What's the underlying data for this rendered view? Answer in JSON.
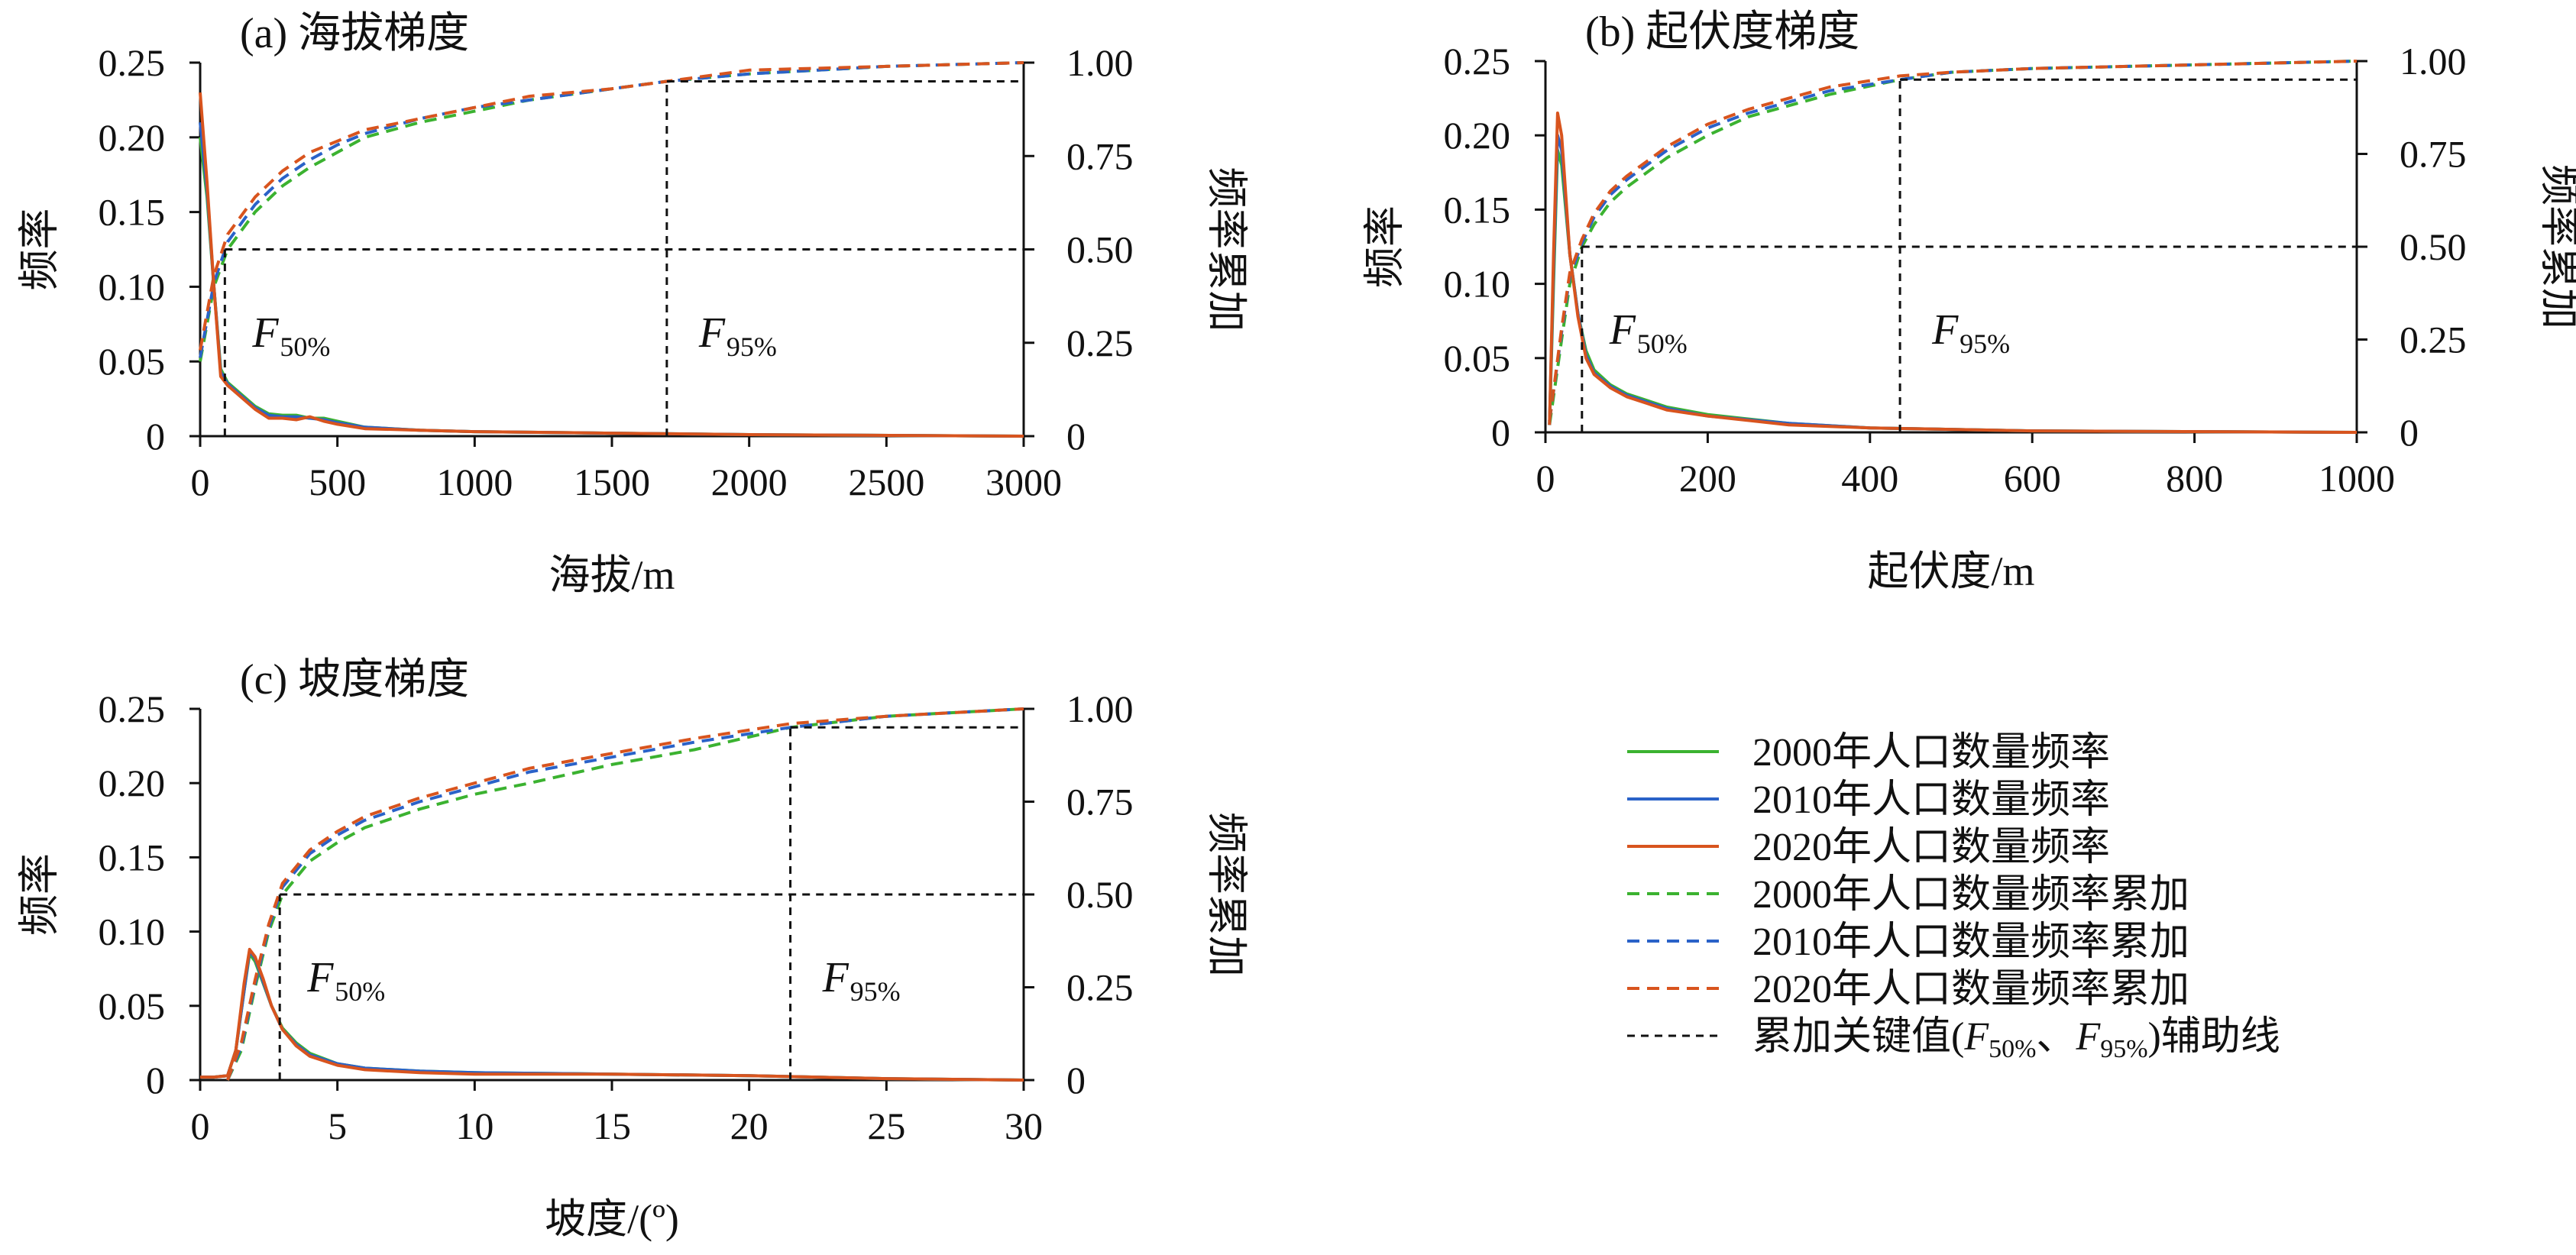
{
  "chart_data": [
    {
      "panel": "a",
      "type": "line",
      "title": "(a) 海拔梯度",
      "xlabel": "海拔/m",
      "ylabel_left": "频率",
      "ylabel_right": "频率累加",
      "xlim": [
        0,
        3000
      ],
      "ylim_left": [
        0,
        0.25
      ],
      "ylim_right": [
        0,
        1.0
      ],
      "x_ticks": [
        "0",
        "500",
        "1000",
        "1500",
        "2000",
        "2500",
        "3000"
      ],
      "y_ticks_left": [
        "0",
        "0.05",
        "0.10",
        "0.15",
        "0.20",
        "0.25"
      ],
      "y_ticks_right": [
        "0",
        "0.25",
        "0.50",
        "0.75",
        "1.00"
      ],
      "key_values": {
        "F50_x": 90,
        "F95_x": 1700
      },
      "key_labels": {
        "F50_main": "F",
        "F50_sub": "50%",
        "F95_main": "F",
        "F95_sub": "95%"
      },
      "series": [
        {
          "name": "2000年人口数量频率",
          "axis": "left",
          "style": "solid",
          "color": "#3bb230",
          "x": [
            0,
            25,
            50,
            75,
            100,
            150,
            200,
            250,
            300,
            350,
            400,
            450,
            500,
            600,
            800,
            1000,
            1500,
            2000,
            3000
          ],
          "y": [
            0.2,
            0.16,
            0.1,
            0.045,
            0.036,
            0.028,
            0.02,
            0.015,
            0.014,
            0.014,
            0.012,
            0.012,
            0.01,
            0.006,
            0.004,
            0.003,
            0.002,
            0.001,
            0.0
          ]
        },
        {
          "name": "2010年人口数量频率",
          "axis": "left",
          "style": "solid",
          "color": "#2a62c8",
          "x": [
            0,
            25,
            50,
            75,
            100,
            150,
            200,
            250,
            300,
            350,
            400,
            450,
            500,
            600,
            800,
            1000,
            1500,
            2000,
            3000
          ],
          "y": [
            0.21,
            0.165,
            0.1,
            0.043,
            0.035,
            0.027,
            0.019,
            0.014,
            0.013,
            0.013,
            0.012,
            0.011,
            0.009,
            0.006,
            0.004,
            0.003,
            0.002,
            0.001,
            0.0
          ]
        },
        {
          "name": "2020年人口数量频率",
          "axis": "left",
          "style": "solid",
          "color": "#d8541e",
          "x": [
            0,
            25,
            50,
            75,
            100,
            150,
            200,
            250,
            300,
            350,
            400,
            450,
            500,
            600,
            800,
            1000,
            1500,
            2000,
            3000
          ],
          "y": [
            0.23,
            0.17,
            0.1,
            0.04,
            0.034,
            0.026,
            0.018,
            0.012,
            0.012,
            0.011,
            0.013,
            0.01,
            0.008,
            0.005,
            0.004,
            0.003,
            0.002,
            0.001,
            0.0
          ]
        },
        {
          "name": "2000年人口数量频率累加",
          "axis": "right",
          "style": "dashed",
          "color": "#3bb230",
          "x": [
            0,
            50,
            100,
            200,
            300,
            400,
            500,
            600,
            800,
            1000,
            1200,
            1500,
            1700,
            2000,
            2500,
            3000
          ],
          "y": [
            0.2,
            0.4,
            0.5,
            0.6,
            0.67,
            0.72,
            0.76,
            0.8,
            0.84,
            0.87,
            0.9,
            0.93,
            0.95,
            0.97,
            0.99,
            1.0
          ]
        },
        {
          "name": "2010年人口数量频率累加",
          "axis": "right",
          "style": "dashed",
          "color": "#2a62c8",
          "x": [
            0,
            50,
            100,
            200,
            300,
            400,
            500,
            600,
            800,
            1000,
            1200,
            1500,
            1700,
            2000,
            2500,
            3000
          ],
          "y": [
            0.21,
            0.41,
            0.52,
            0.62,
            0.69,
            0.74,
            0.78,
            0.81,
            0.85,
            0.88,
            0.9,
            0.93,
            0.95,
            0.97,
            0.99,
            1.0
          ]
        },
        {
          "name": "2020年人口数量频率累加",
          "axis": "right",
          "style": "dashed",
          "color": "#d8541e",
          "x": [
            0,
            50,
            100,
            200,
            300,
            400,
            500,
            600,
            800,
            1000,
            1200,
            1500,
            1700,
            2000,
            2500,
            3000
          ],
          "y": [
            0.23,
            0.43,
            0.54,
            0.64,
            0.71,
            0.76,
            0.79,
            0.82,
            0.85,
            0.88,
            0.91,
            0.93,
            0.95,
            0.98,
            0.99,
            1.0
          ]
        }
      ]
    },
    {
      "panel": "b",
      "type": "line",
      "title": "(b) 起伏度梯度",
      "xlabel": "起伏度/m",
      "ylabel_left": "频率",
      "ylabel_right": "频率累加",
      "xlim": [
        0,
        1000
      ],
      "ylim_left": [
        0,
        0.25
      ],
      "ylim_right": [
        0,
        1.0
      ],
      "x_ticks": [
        "0",
        "200",
        "400",
        "600",
        "800",
        "1000"
      ],
      "y_ticks_left": [
        "0",
        "0.05",
        "0.10",
        "0.15",
        "0.20",
        "0.25"
      ],
      "y_ticks_right": [
        "0",
        "0.25",
        "0.50",
        "0.75",
        "1.00"
      ],
      "key_values": {
        "F50_x": 45,
        "F95_x": 437
      },
      "key_labels": {
        "F50_main": "F",
        "F50_sub": "50%",
        "F95_main": "F",
        "F95_sub": "95%"
      },
      "series": [
        {
          "name": "2000年人口数量频率",
          "axis": "left",
          "style": "solid",
          "color": "#3bb230",
          "x": [
            5,
            10,
            15,
            20,
            25,
            30,
            40,
            50,
            60,
            80,
            100,
            150,
            200,
            300,
            400,
            600,
            1000
          ],
          "y": [
            0.005,
            0.1,
            0.19,
            0.18,
            0.15,
            0.12,
            0.08,
            0.055,
            0.042,
            0.032,
            0.026,
            0.017,
            0.012,
            0.006,
            0.003,
            0.001,
            0.0
          ]
        },
        {
          "name": "2010年人口数量频率",
          "axis": "left",
          "style": "solid",
          "color": "#2a62c8",
          "x": [
            5,
            10,
            15,
            20,
            25,
            30,
            40,
            50,
            60,
            80,
            100,
            150,
            200,
            300,
            400,
            600,
            1000
          ],
          "y": [
            0.005,
            0.11,
            0.2,
            0.19,
            0.155,
            0.12,
            0.08,
            0.052,
            0.04,
            0.031,
            0.025,
            0.016,
            0.011,
            0.006,
            0.003,
            0.001,
            0.0
          ]
        },
        {
          "name": "2020年人口数量频率",
          "axis": "left",
          "style": "solid",
          "color": "#d8541e",
          "x": [
            5,
            10,
            15,
            20,
            25,
            30,
            40,
            50,
            60,
            80,
            100,
            150,
            200,
            300,
            400,
            600,
            1000
          ],
          "y": [
            0.005,
            0.12,
            0.215,
            0.2,
            0.16,
            0.12,
            0.078,
            0.05,
            0.039,
            0.03,
            0.024,
            0.015,
            0.011,
            0.005,
            0.003,
            0.001,
            0.0
          ]
        },
        {
          "name": "2000年人口数量频率累加",
          "axis": "right",
          "style": "dashed",
          "color": "#3bb230",
          "x": [
            5,
            20,
            30,
            45,
            60,
            80,
            100,
            150,
            200,
            250,
            300,
            350,
            437,
            500,
            600,
            800,
            1000
          ],
          "y": [
            0.02,
            0.25,
            0.4,
            0.5,
            0.56,
            0.62,
            0.66,
            0.74,
            0.8,
            0.85,
            0.88,
            0.91,
            0.95,
            0.97,
            0.98,
            0.99,
            1.0
          ]
        },
        {
          "name": "2010年人口数量频率累加",
          "axis": "right",
          "style": "dashed",
          "color": "#2a62c8",
          "x": [
            5,
            20,
            30,
            45,
            60,
            80,
            100,
            150,
            200,
            250,
            300,
            350,
            437,
            500,
            600,
            800,
            1000
          ],
          "y": [
            0.03,
            0.27,
            0.42,
            0.51,
            0.58,
            0.64,
            0.68,
            0.76,
            0.82,
            0.86,
            0.89,
            0.92,
            0.95,
            0.97,
            0.98,
            0.99,
            1.0
          ]
        },
        {
          "name": "2020年人口数量频率累加",
          "axis": "right",
          "style": "dashed",
          "color": "#d8541e",
          "x": [
            5,
            20,
            30,
            45,
            60,
            80,
            100,
            150,
            200,
            250,
            300,
            350,
            437,
            500,
            600,
            800,
            1000
          ],
          "y": [
            0.03,
            0.28,
            0.43,
            0.52,
            0.59,
            0.65,
            0.69,
            0.77,
            0.83,
            0.87,
            0.9,
            0.93,
            0.96,
            0.97,
            0.98,
            0.99,
            1.0
          ]
        }
      ]
    },
    {
      "panel": "c",
      "type": "line",
      "title": "(c) 坡度梯度",
      "xlabel": "坡度/(º)",
      "ylabel_left": "频率",
      "ylabel_right": "频率累加",
      "xlim": [
        0,
        30
      ],
      "ylim_left": [
        0,
        0.25
      ],
      "ylim_right": [
        0,
        1.0
      ],
      "x_ticks": [
        "0",
        "5",
        "10",
        "15",
        "20",
        "25",
        "30"
      ],
      "y_ticks_left": [
        "0",
        "0.05",
        "0.10",
        "0.15",
        "0.20",
        "0.25"
      ],
      "y_ticks_right": [
        "0",
        "0.25",
        "0.50",
        "0.75",
        "1.00"
      ],
      "key_values": {
        "F50_x": 2.9,
        "F95_x": 21.5
      },
      "key_labels": {
        "F50_main": "F",
        "F50_sub": "50%",
        "F95_main": "F",
        "F95_sub": "95%"
      },
      "series": [
        {
          "name": "2000年人口数量频率",
          "axis": "left",
          "style": "solid",
          "color": "#3bb230",
          "x": [
            0,
            0.5,
            1,
            1.3,
            1.6,
            1.8,
            2.0,
            2.3,
            2.6,
            3.0,
            3.5,
            4,
            5,
            6,
            8,
            10,
            15,
            20,
            25,
            30
          ],
          "y": [
            0.002,
            0.002,
            0.003,
            0.02,
            0.06,
            0.085,
            0.08,
            0.065,
            0.05,
            0.035,
            0.025,
            0.018,
            0.011,
            0.008,
            0.006,
            0.005,
            0.004,
            0.003,
            0.001,
            0.0
          ]
        },
        {
          "name": "2010年人口数量频率",
          "axis": "left",
          "style": "solid",
          "color": "#2a62c8",
          "x": [
            0,
            0.5,
            1,
            1.3,
            1.6,
            1.8,
            2.0,
            2.3,
            2.6,
            3.0,
            3.5,
            4,
            5,
            6,
            8,
            10,
            15,
            20,
            25,
            30
          ],
          "y": [
            0.002,
            0.002,
            0.003,
            0.02,
            0.06,
            0.087,
            0.082,
            0.066,
            0.05,
            0.034,
            0.024,
            0.017,
            0.011,
            0.008,
            0.006,
            0.005,
            0.004,
            0.003,
            0.001,
            0.0
          ]
        },
        {
          "name": "2020年人口数量频率",
          "axis": "left",
          "style": "solid",
          "color": "#d8541e",
          "x": [
            0,
            0.5,
            1,
            1.3,
            1.6,
            1.8,
            2.0,
            2.3,
            2.6,
            3.0,
            3.5,
            4,
            5,
            6,
            8,
            10,
            15,
            20,
            25,
            30
          ],
          "y": [
            0.002,
            0.002,
            0.003,
            0.02,
            0.065,
            0.088,
            0.083,
            0.068,
            0.05,
            0.034,
            0.023,
            0.016,
            0.01,
            0.007,
            0.005,
            0.004,
            0.004,
            0.003,
            0.001,
            0.0
          ]
        },
        {
          "name": "2000年人口数量频率累加",
          "axis": "right",
          "style": "dashed",
          "color": "#3bb230",
          "x": [
            1,
            1.5,
            2,
            2.5,
            3,
            4,
            5,
            6,
            8,
            10,
            12,
            15,
            18,
            21.5,
            25,
            30
          ],
          "y": [
            0.0,
            0.08,
            0.25,
            0.4,
            0.5,
            0.59,
            0.64,
            0.68,
            0.73,
            0.77,
            0.8,
            0.85,
            0.89,
            0.95,
            0.98,
            1.0
          ]
        },
        {
          "name": "2010年人口数量频率累加",
          "axis": "right",
          "style": "dashed",
          "color": "#2a62c8",
          "x": [
            1,
            1.5,
            2,
            2.5,
            3,
            4,
            5,
            6,
            8,
            10,
            12,
            15,
            18,
            21.5,
            25,
            30
          ],
          "y": [
            0.0,
            0.09,
            0.26,
            0.41,
            0.52,
            0.61,
            0.66,
            0.7,
            0.75,
            0.79,
            0.83,
            0.87,
            0.91,
            0.95,
            0.98,
            1.0
          ]
        },
        {
          "name": "2020年人口数量频率累加",
          "axis": "right",
          "style": "dashed",
          "color": "#d8541e",
          "x": [
            1,
            1.5,
            2,
            2.5,
            3,
            4,
            5,
            6,
            8,
            10,
            12,
            15,
            18,
            21.5,
            25,
            30
          ],
          "y": [
            0.0,
            0.1,
            0.27,
            0.42,
            0.53,
            0.62,
            0.67,
            0.71,
            0.76,
            0.8,
            0.84,
            0.88,
            0.92,
            0.96,
            0.98,
            1.0
          ]
        }
      ]
    }
  ],
  "legend": {
    "items": [
      {
        "label": "2000年人口数量频率",
        "color": "#3bb230",
        "style": "solid"
      },
      {
        "label": "2010年人口数量频率",
        "color": "#2a62c8",
        "style": "solid"
      },
      {
        "label": "2020年人口数量频率",
        "color": "#d8541e",
        "style": "solid"
      },
      {
        "label": "2000年人口数量频率累加",
        "color": "#3bb230",
        "style": "dashed"
      },
      {
        "label": "2010年人口数量频率累加",
        "color": "#2a62c8",
        "style": "dashed"
      },
      {
        "label": "2020年人口数量频率累加",
        "color": "#d8541e",
        "style": "dashed"
      }
    ],
    "aux": {
      "color": "#111111",
      "style": "dashed",
      "t1": "累加关键值(",
      "f1": "F",
      "s1": "50%",
      "t2": "、",
      "f2": "F",
      "s2": "95%",
      "t3": ")辅助线"
    }
  }
}
